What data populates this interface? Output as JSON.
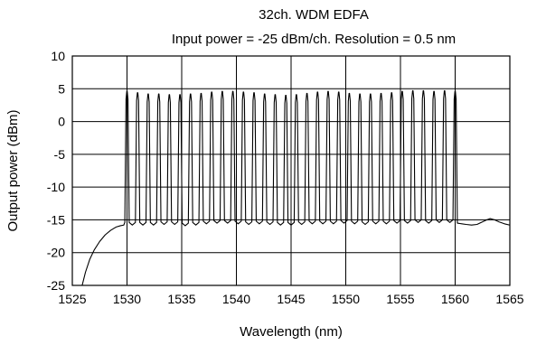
{
  "chart_data": {
    "type": "line",
    "title": "32ch. WDM EDFA",
    "subtitle": "Input power = -25 dBm/ch.  Resolution = 0.5 nm",
    "xlabel": "Wavelength (nm)",
    "ylabel": "Output power (dBm)",
    "xlim": [
      1525,
      1565
    ],
    "ylim": [
      -25,
      10
    ],
    "xticks": [
      "1525",
      "1530",
      "1535",
      "1540",
      "1545",
      "1550",
      "1555",
      "1560",
      "1565"
    ],
    "yticks": [
      "10",
      "5",
      "0",
      "-5",
      "-10",
      "-15",
      "-20",
      "-25"
    ],
    "grid": true,
    "legend": "none",
    "series": [
      {
        "color": "#000000",
        "channel_count": 32,
        "channel_start_nm": 1530.0,
        "channel_end_nm": 1560.0,
        "channel_peaks_dBm": [
          4.6,
          4.4,
          4.2,
          4.2,
          4.1,
          4.1,
          4.2,
          4.3,
          4.5,
          4.6,
          4.6,
          4.5,
          4.4,
          4.2,
          4.1,
          4.0,
          4.1,
          4.3,
          4.5,
          4.6,
          4.5,
          4.3,
          4.2,
          4.2,
          4.3,
          4.4,
          4.6,
          4.7,
          4.7,
          4.6,
          4.7,
          4.6
        ],
        "channel_valleys_dBm": [
          -15.8,
          -15.8,
          -15.8,
          -15.7,
          -15.7,
          -15.9,
          -15.8,
          -15.6,
          -15.5,
          -15.5,
          -15.6,
          -15.7,
          -15.6,
          -15.7,
          -15.8,
          -15.8,
          -15.7,
          -15.6,
          -15.6,
          -15.6,
          -15.5,
          -15.6,
          -15.7,
          -15.6,
          -15.6,
          -15.5,
          -15.5,
          -15.4,
          -15.5,
          -15.4,
          -15.4
        ],
        "points": [
          [
            1525.9,
            -25.0
          ],
          [
            1526.2,
            -23.0
          ],
          [
            1526.6,
            -21.0
          ],
          [
            1527.0,
            -19.6
          ],
          [
            1527.5,
            -18.3
          ],
          [
            1528.0,
            -17.3
          ],
          [
            1528.5,
            -16.6
          ],
          [
            1529.0,
            -16.1
          ],
          [
            1529.4,
            -15.9
          ],
          [
            1529.7,
            -15.8
          ],
          [
            1560.2,
            -15.5
          ],
          [
            1560.6,
            -15.6
          ],
          [
            1561.0,
            -15.7
          ],
          [
            1561.5,
            -15.8
          ],
          [
            1562.0,
            -15.7
          ],
          [
            1562.5,
            -15.3
          ],
          [
            1562.9,
            -15.0
          ],
          [
            1563.2,
            -14.8
          ],
          [
            1563.6,
            -15.0
          ],
          [
            1564.0,
            -15.3
          ],
          [
            1564.5,
            -15.6
          ],
          [
            1565.0,
            -15.8
          ]
        ]
      }
    ]
  }
}
